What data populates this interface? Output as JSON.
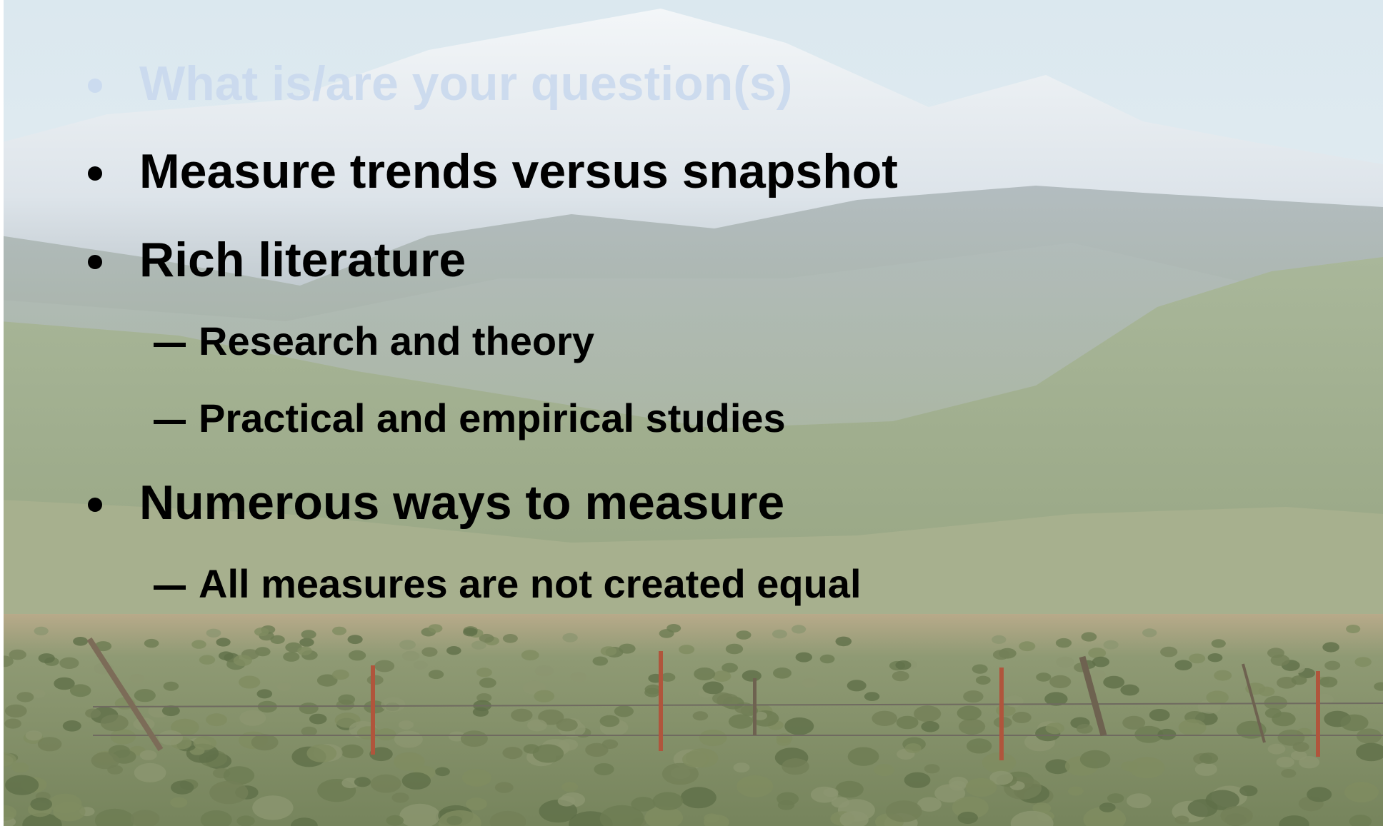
{
  "slide": {
    "bullets": [
      {
        "text": "What is/are your question(s)"
      },
      {
        "text": "Measure trends versus snapshot"
      },
      {
        "text": "Rich literature",
        "subitems": [
          "Research and theory",
          "Practical and empirical studies"
        ]
      },
      {
        "text": "Numerous ways to measure",
        "subitems": [
          "All measures are not created equal"
        ]
      }
    ]
  }
}
